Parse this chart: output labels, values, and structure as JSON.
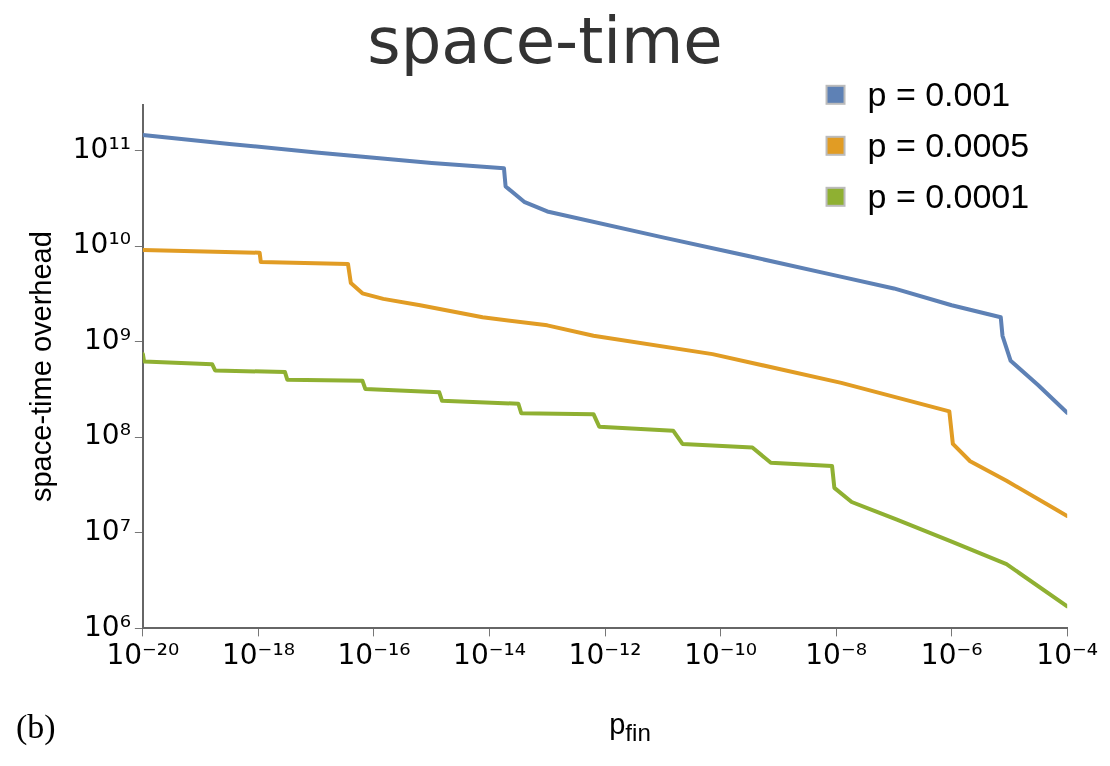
{
  "chart_data": {
    "type": "line",
    "title": "space-time",
    "xlabel": "p$_{fin}$",
    "ylabel": "space-time overhead",
    "annotations": [
      "(b)"
    ],
    "log": "xy",
    "grid": false,
    "legend": "top right",
    "marker": "none",
    "line_style": "solid",
    "xlim": [
      1e-20,
      0.0001
    ],
    "ylim": [
      1000000.0,
      300000000000.0
    ],
    "xticks": [
      {
        "value": 1e-20,
        "label": "10⁻²⁰"
      },
      {
        "value": 1e-18,
        "label": "10⁻¹⁸"
      },
      {
        "value": 1e-16,
        "label": "10⁻¹⁶"
      },
      {
        "value": 1e-14,
        "label": "10⁻¹⁴"
      },
      {
        "value": 1e-12,
        "label": "10⁻¹²"
      },
      {
        "value": 1e-10,
        "label": "10⁻¹⁰"
      },
      {
        "value": 1e-08,
        "label": "10⁻⁸"
      },
      {
        "value": 1e-06,
        "label": "10⁻⁶"
      },
      {
        "value": 0.0001,
        "label": "10⁻⁴"
      }
    ],
    "yticks": [
      {
        "value": 1000000.0,
        "label": "10⁶"
      },
      {
        "value": 10000000.0,
        "label": "10⁷"
      },
      {
        "value": 100000000.0,
        "label": "10⁸"
      },
      {
        "value": 1000000000.0,
        "label": "10⁹"
      },
      {
        "value": 10000000000.0,
        "label": "10¹⁰"
      },
      {
        "value": 100000000000.0,
        "label": "10¹¹"
      }
    ],
    "series": [
      {
        "name": "p = 0.001",
        "color": "#5e81b5",
        "x": [
          1e-20,
          3.16e-19,
          1e-17,
          1e-15,
          1.78e-14,
          1.9e-14,
          3.98e-14,
          1e-13,
          1e-11,
          3.16e-10,
          1e-08,
          1e-07,
          1e-06,
          7.08e-06,
          7.59e-06,
          1.05e-05,
          3.16e-05,
          0.0001
        ],
        "values": [
          145000000000.0,
          117000000000.0,
          95000000000.0,
          74000000000.0,
          65000000000.0,
          42000000000.0,
          29000000000.0,
          23000000000.0,
          12300000000.0,
          7800000000.0,
          4900000000.0,
          3600000000.0,
          2400000000.0,
          1800000000.0,
          1150000000.0,
          630000000.0,
          350000000.0,
          180000000.0
        ]
      },
      {
        "name": "p = 0.0005",
        "color": "#e19c24",
        "x": [
          1e-20,
          1.05e-18,
          1.1e-18,
          3.55e-17,
          3.98e-17,
          6.31e-17,
          1.45e-16,
          6.31e-16,
          7.59e-15,
          1e-13,
          6.31e-13,
          7.24e-11,
          1.23e-08,
          9.12e-07,
          1.05e-06,
          2.09e-06,
          8.91e-06,
          0.0001
        ],
        "values": [
          9100000000.0,
          8500000000.0,
          6800000000.0,
          6500000000.0,
          4100000000.0,
          3200000000.0,
          2800000000.0,
          2400000000.0,
          1800000000.0,
          1480000000.0,
          1150000000.0,
          740000000.0,
          370000000.0,
          186000000.0,
          85000000.0,
          56000000.0,
          35000000.0,
          15000000.0
        ]
      },
      {
        "name": "p = 0.0001",
        "color": "#8fb032",
        "x": [
          1e-20,
          1.05e-20,
          1.58e-19,
          1.78e-19,
          2.88e-18,
          3.16e-18,
          6.31e-17,
          7.08e-17,
          1.35e-15,
          1.51e-15,
          3.16e-14,
          3.55e-14,
          6.31e-13,
          7.94e-13,
          1.51e-11,
          2.19e-11,
          3.55e-10,
          7.41e-10,
          8.51e-09,
          9.33e-09,
          1.86e-08,
          1.1e-07,
          1e-06,
          8.91e-06,
          0.0001
        ],
        "values": [
          740000000.0,
          620000000.0,
          580000000.0,
          500000000.0,
          480000000.0,
          400000000.0,
          390000000.0,
          320000000.0,
          295000000.0,
          240000000.0,
          224000000.0,
          178000000.0,
          174000000.0,
          129000000.0,
          117000000.0,
          85000000.0,
          78000000.0,
          54000000.0,
          50000000.0,
          29500000.0,
          21000000.0,
          13800000.0,
          8100000.0,
          4700000.0,
          1700000.0
        ]
      }
    ]
  }
}
